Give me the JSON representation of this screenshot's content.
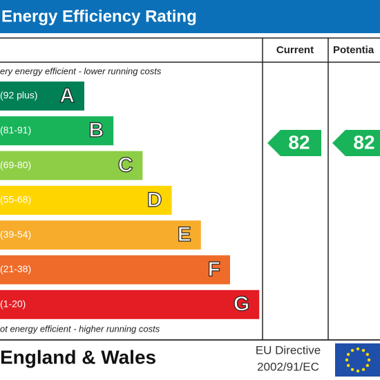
{
  "header": {
    "title": "Energy Efficiency Rating",
    "columns": [
      "Current",
      "Potentia"
    ]
  },
  "top_note": "ery energy efficient - lower running costs",
  "bands": [
    {
      "range": "(92 plus)",
      "letter": "A"
    },
    {
      "range": "(81-91)",
      "letter": "B"
    },
    {
      "range": "(69-80)",
      "letter": "C"
    },
    {
      "range": "(55-68)",
      "letter": "D"
    },
    {
      "range": "(39-54)",
      "letter": "E"
    },
    {
      "range": "(21-38)",
      "letter": "F"
    },
    {
      "range": "(1-20)",
      "letter": "G"
    }
  ],
  "bottom_note": "ot energy efficient - higher running costs",
  "current": "82",
  "potential": "82",
  "footer": {
    "region": "England & Wales",
    "directive_line1": "EU Directive",
    "directive_line2": "2002/91/EC"
  }
}
